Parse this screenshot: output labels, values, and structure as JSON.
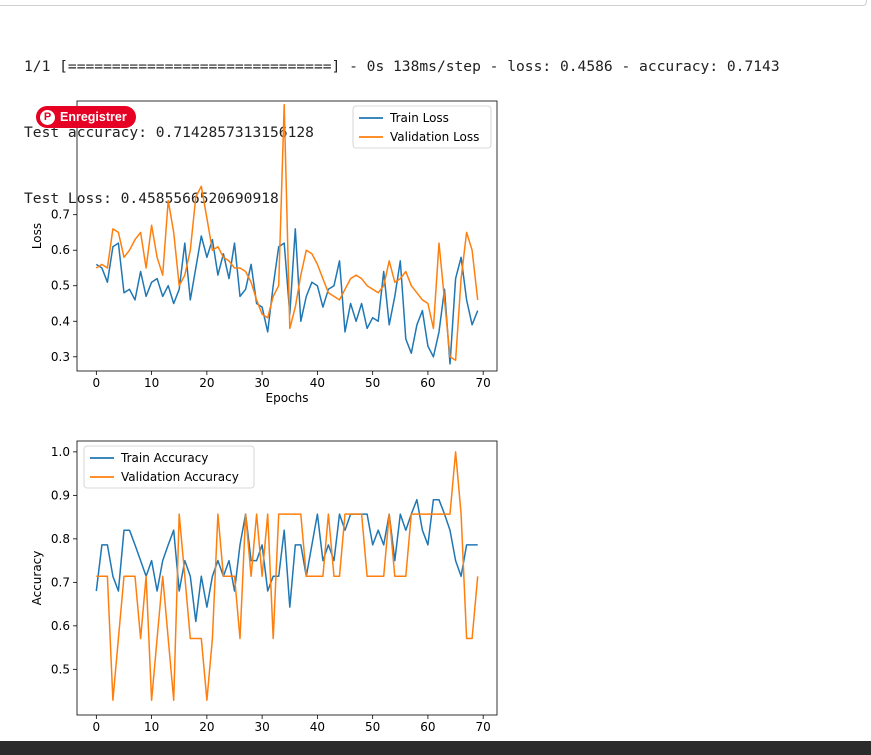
{
  "console": {
    "lines": [
      "1/1 [==============================] - 0s 138ms/step - loss: 0.4586 - accuracy: 0.7143",
      "Test accuracy: 0.7142857313156128",
      "Test Loss: 0.4585566520690918"
    ]
  },
  "pinterest_badge": {
    "label": "Enregistrer",
    "icon": "pinterest-icon",
    "color": "#e60023"
  },
  "colors": {
    "train": "#1f77b4",
    "validation": "#ff7f0e"
  },
  "chart_data": [
    {
      "type": "line",
      "xlabel": "Epochs",
      "ylabel": "Loss",
      "xlim": [
        -3.5,
        72.5
      ],
      "ylim": [
        0.26,
        1.02
      ],
      "xticks": [
        0,
        10,
        20,
        30,
        40,
        50,
        60,
        70
      ],
      "yticks": [
        0.3,
        0.4,
        0.5,
        0.6,
        0.7
      ],
      "legend_position": "upper-right",
      "grid": false,
      "x": [
        0,
        1,
        2,
        3,
        4,
        5,
        6,
        7,
        8,
        9,
        10,
        11,
        12,
        13,
        14,
        15,
        16,
        17,
        18,
        19,
        20,
        21,
        22,
        23,
        24,
        25,
        26,
        27,
        28,
        29,
        30,
        31,
        32,
        33,
        34,
        35,
        36,
        37,
        38,
        39,
        40,
        41,
        42,
        43,
        44,
        45,
        46,
        47,
        48,
        49,
        50,
        51,
        52,
        53,
        54,
        55,
        56,
        57,
        58,
        59,
        60,
        61,
        62,
        63,
        64,
        65,
        66,
        67,
        68,
        69
      ],
      "series": [
        {
          "name": "Train Loss",
          "color": "#1f77b4",
          "values": [
            0.56,
            0.55,
            0.51,
            0.61,
            0.62,
            0.48,
            0.49,
            0.46,
            0.54,
            0.47,
            0.51,
            0.52,
            0.47,
            0.5,
            0.45,
            0.49,
            0.62,
            0.46,
            0.55,
            0.64,
            0.58,
            0.63,
            0.53,
            0.59,
            0.52,
            0.62,
            0.47,
            0.49,
            0.56,
            0.45,
            0.44,
            0.37,
            0.5,
            0.61,
            0.62,
            0.42,
            0.66,
            0.4,
            0.47,
            0.51,
            0.5,
            0.44,
            0.49,
            0.5,
            0.57,
            0.37,
            0.45,
            0.4,
            0.45,
            0.38,
            0.41,
            0.4,
            0.54,
            0.39,
            0.47,
            0.57,
            0.35,
            0.31,
            0.39,
            0.43,
            0.33,
            0.3,
            0.37,
            0.49,
            0.28,
            0.52,
            0.58,
            0.46,
            0.39,
            0.43
          ]
        },
        {
          "name": "Validation Loss",
          "color": "#ff7f0e",
          "values": [
            0.55,
            0.56,
            0.55,
            0.66,
            0.65,
            0.58,
            0.6,
            0.63,
            0.65,
            0.55,
            0.67,
            0.58,
            0.53,
            0.74,
            0.65,
            0.5,
            0.53,
            0.6,
            0.75,
            0.78,
            0.69,
            0.6,
            0.61,
            0.58,
            0.57,
            0.55,
            0.55,
            0.54,
            0.51,
            0.46,
            0.42,
            0.41,
            0.47,
            0.5,
            1.01,
            0.38,
            0.44,
            0.53,
            0.6,
            0.59,
            0.56,
            0.52,
            0.48,
            0.47,
            0.46,
            0.49,
            0.52,
            0.53,
            0.52,
            0.5,
            0.49,
            0.48,
            0.5,
            0.57,
            0.51,
            0.52,
            0.54,
            0.5,
            0.48,
            0.46,
            0.45,
            0.38,
            0.62,
            0.46,
            0.3,
            0.29,
            0.52,
            0.65,
            0.6,
            0.46
          ]
        }
      ]
    },
    {
      "type": "line",
      "xlabel": "",
      "ylabel": "Accuracy",
      "xlim": [
        -3.5,
        72.5
      ],
      "ylim": [
        0.395,
        1.025
      ],
      "xticks": [
        0,
        10,
        20,
        30,
        40,
        50,
        60,
        70
      ],
      "yticks": [
        0.5,
        0.6,
        0.7,
        0.8,
        0.9,
        1.0
      ],
      "legend_position": "upper-left",
      "grid": false,
      "x": [
        0,
        1,
        2,
        3,
        4,
        5,
        6,
        7,
        8,
        9,
        10,
        11,
        12,
        13,
        14,
        15,
        16,
        17,
        18,
        19,
        20,
        21,
        22,
        23,
        24,
        25,
        26,
        27,
        28,
        29,
        30,
        31,
        32,
        33,
        34,
        35,
        36,
        37,
        38,
        39,
        40,
        41,
        42,
        43,
        44,
        45,
        46,
        47,
        48,
        49,
        50,
        51,
        52,
        53,
        54,
        55,
        56,
        57,
        58,
        59,
        60,
        61,
        62,
        63,
        64,
        65,
        66,
        67,
        68,
        69
      ],
      "series": [
        {
          "name": "Train Accuracy",
          "color": "#1f77b4",
          "values": [
            0.68,
            0.786,
            0.786,
            0.714,
            0.68,
            0.82,
            0.82,
            0.786,
            0.75,
            0.714,
            0.75,
            0.68,
            0.75,
            0.786,
            0.82,
            0.68,
            0.75,
            0.714,
            0.61,
            0.714,
            0.643,
            0.714,
            0.75,
            0.714,
            0.75,
            0.68,
            0.786,
            0.857,
            0.75,
            0.75,
            0.786,
            0.68,
            0.714,
            0.714,
            0.82,
            0.643,
            0.786,
            0.786,
            0.714,
            0.786,
            0.857,
            0.75,
            0.786,
            0.75,
            0.857,
            0.82,
            0.857,
            0.857,
            0.857,
            0.857,
            0.786,
            0.82,
            0.786,
            0.857,
            0.75,
            0.857,
            0.82,
            0.857,
            0.89,
            0.82,
            0.786,
            0.89,
            0.89,
            0.857,
            0.82,
            0.75,
            0.714,
            0.786,
            0.786,
            0.786
          ]
        },
        {
          "name": "Validation Accuracy",
          "color": "#ff7f0e",
          "values": [
            0.714,
            0.714,
            0.714,
            0.429,
            0.571,
            0.714,
            0.714,
            0.714,
            0.571,
            0.714,
            0.429,
            0.571,
            0.714,
            0.571,
            0.429,
            0.857,
            0.714,
            0.571,
            0.571,
            0.571,
            0.429,
            0.571,
            0.857,
            0.714,
            0.714,
            0.714,
            0.571,
            0.857,
            0.714,
            0.857,
            0.714,
            0.857,
            0.571,
            0.857,
            0.857,
            0.857,
            0.857,
            0.857,
            0.714,
            0.714,
            0.714,
            0.714,
            0.857,
            0.714,
            0.714,
            0.857,
            0.857,
            0.857,
            0.857,
            0.714,
            0.714,
            0.714,
            0.714,
            0.857,
            0.714,
            0.714,
            0.714,
            0.857,
            0.857,
            0.857,
            0.857,
            0.857,
            0.857,
            0.857,
            0.857,
            1.0,
            0.857,
            0.571,
            0.571,
            0.714
          ]
        }
      ]
    }
  ]
}
